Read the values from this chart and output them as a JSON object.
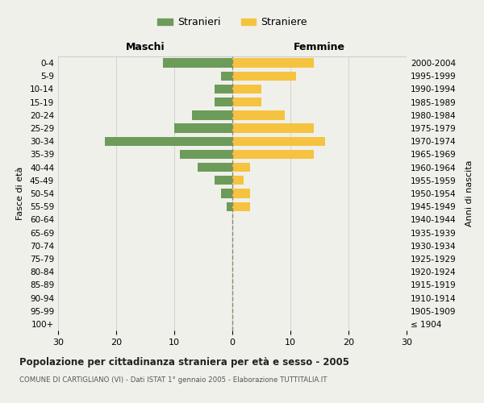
{
  "age_groups": [
    "100+",
    "95-99",
    "90-94",
    "85-89",
    "80-84",
    "75-79",
    "70-74",
    "65-69",
    "60-64",
    "55-59",
    "50-54",
    "45-49",
    "40-44",
    "35-39",
    "30-34",
    "25-29",
    "20-24",
    "15-19",
    "10-14",
    "5-9",
    "0-4"
  ],
  "birth_years": [
    "≤ 1904",
    "1905-1909",
    "1910-1914",
    "1915-1919",
    "1920-1924",
    "1925-1929",
    "1930-1934",
    "1935-1939",
    "1940-1944",
    "1945-1949",
    "1950-1954",
    "1955-1959",
    "1960-1964",
    "1965-1969",
    "1970-1974",
    "1975-1979",
    "1980-1984",
    "1985-1989",
    "1990-1994",
    "1995-1999",
    "2000-2004"
  ],
  "maschi": [
    0,
    0,
    0,
    0,
    0,
    0,
    0,
    0,
    0,
    1,
    2,
    3,
    6,
    9,
    22,
    10,
    7,
    3,
    3,
    2,
    12
  ],
  "femmine": [
    0,
    0,
    0,
    0,
    0,
    0,
    0,
    0,
    0,
    3,
    3,
    2,
    3,
    14,
    16,
    14,
    9,
    5,
    5,
    11,
    14
  ],
  "color_maschi": "#6d9b5a",
  "color_femmine": "#f5c340",
  "title": "Popolazione per cittadinanza straniera per età e sesso - 2005",
  "subtitle": "COMUNE DI CARTIGLIANO (VI) - Dati ISTAT 1° gennaio 2005 - Elaborazione TUTTITALIA.IT",
  "xlabel_left": "Maschi",
  "xlabel_right": "Femmine",
  "ylabel_left": "Fasce di età",
  "ylabel_right": "Anni di nascita",
  "xlim": 30,
  "legend_stranieri": "Stranieri",
  "legend_straniere": "Straniere",
  "background_color": "#f0f0eb"
}
